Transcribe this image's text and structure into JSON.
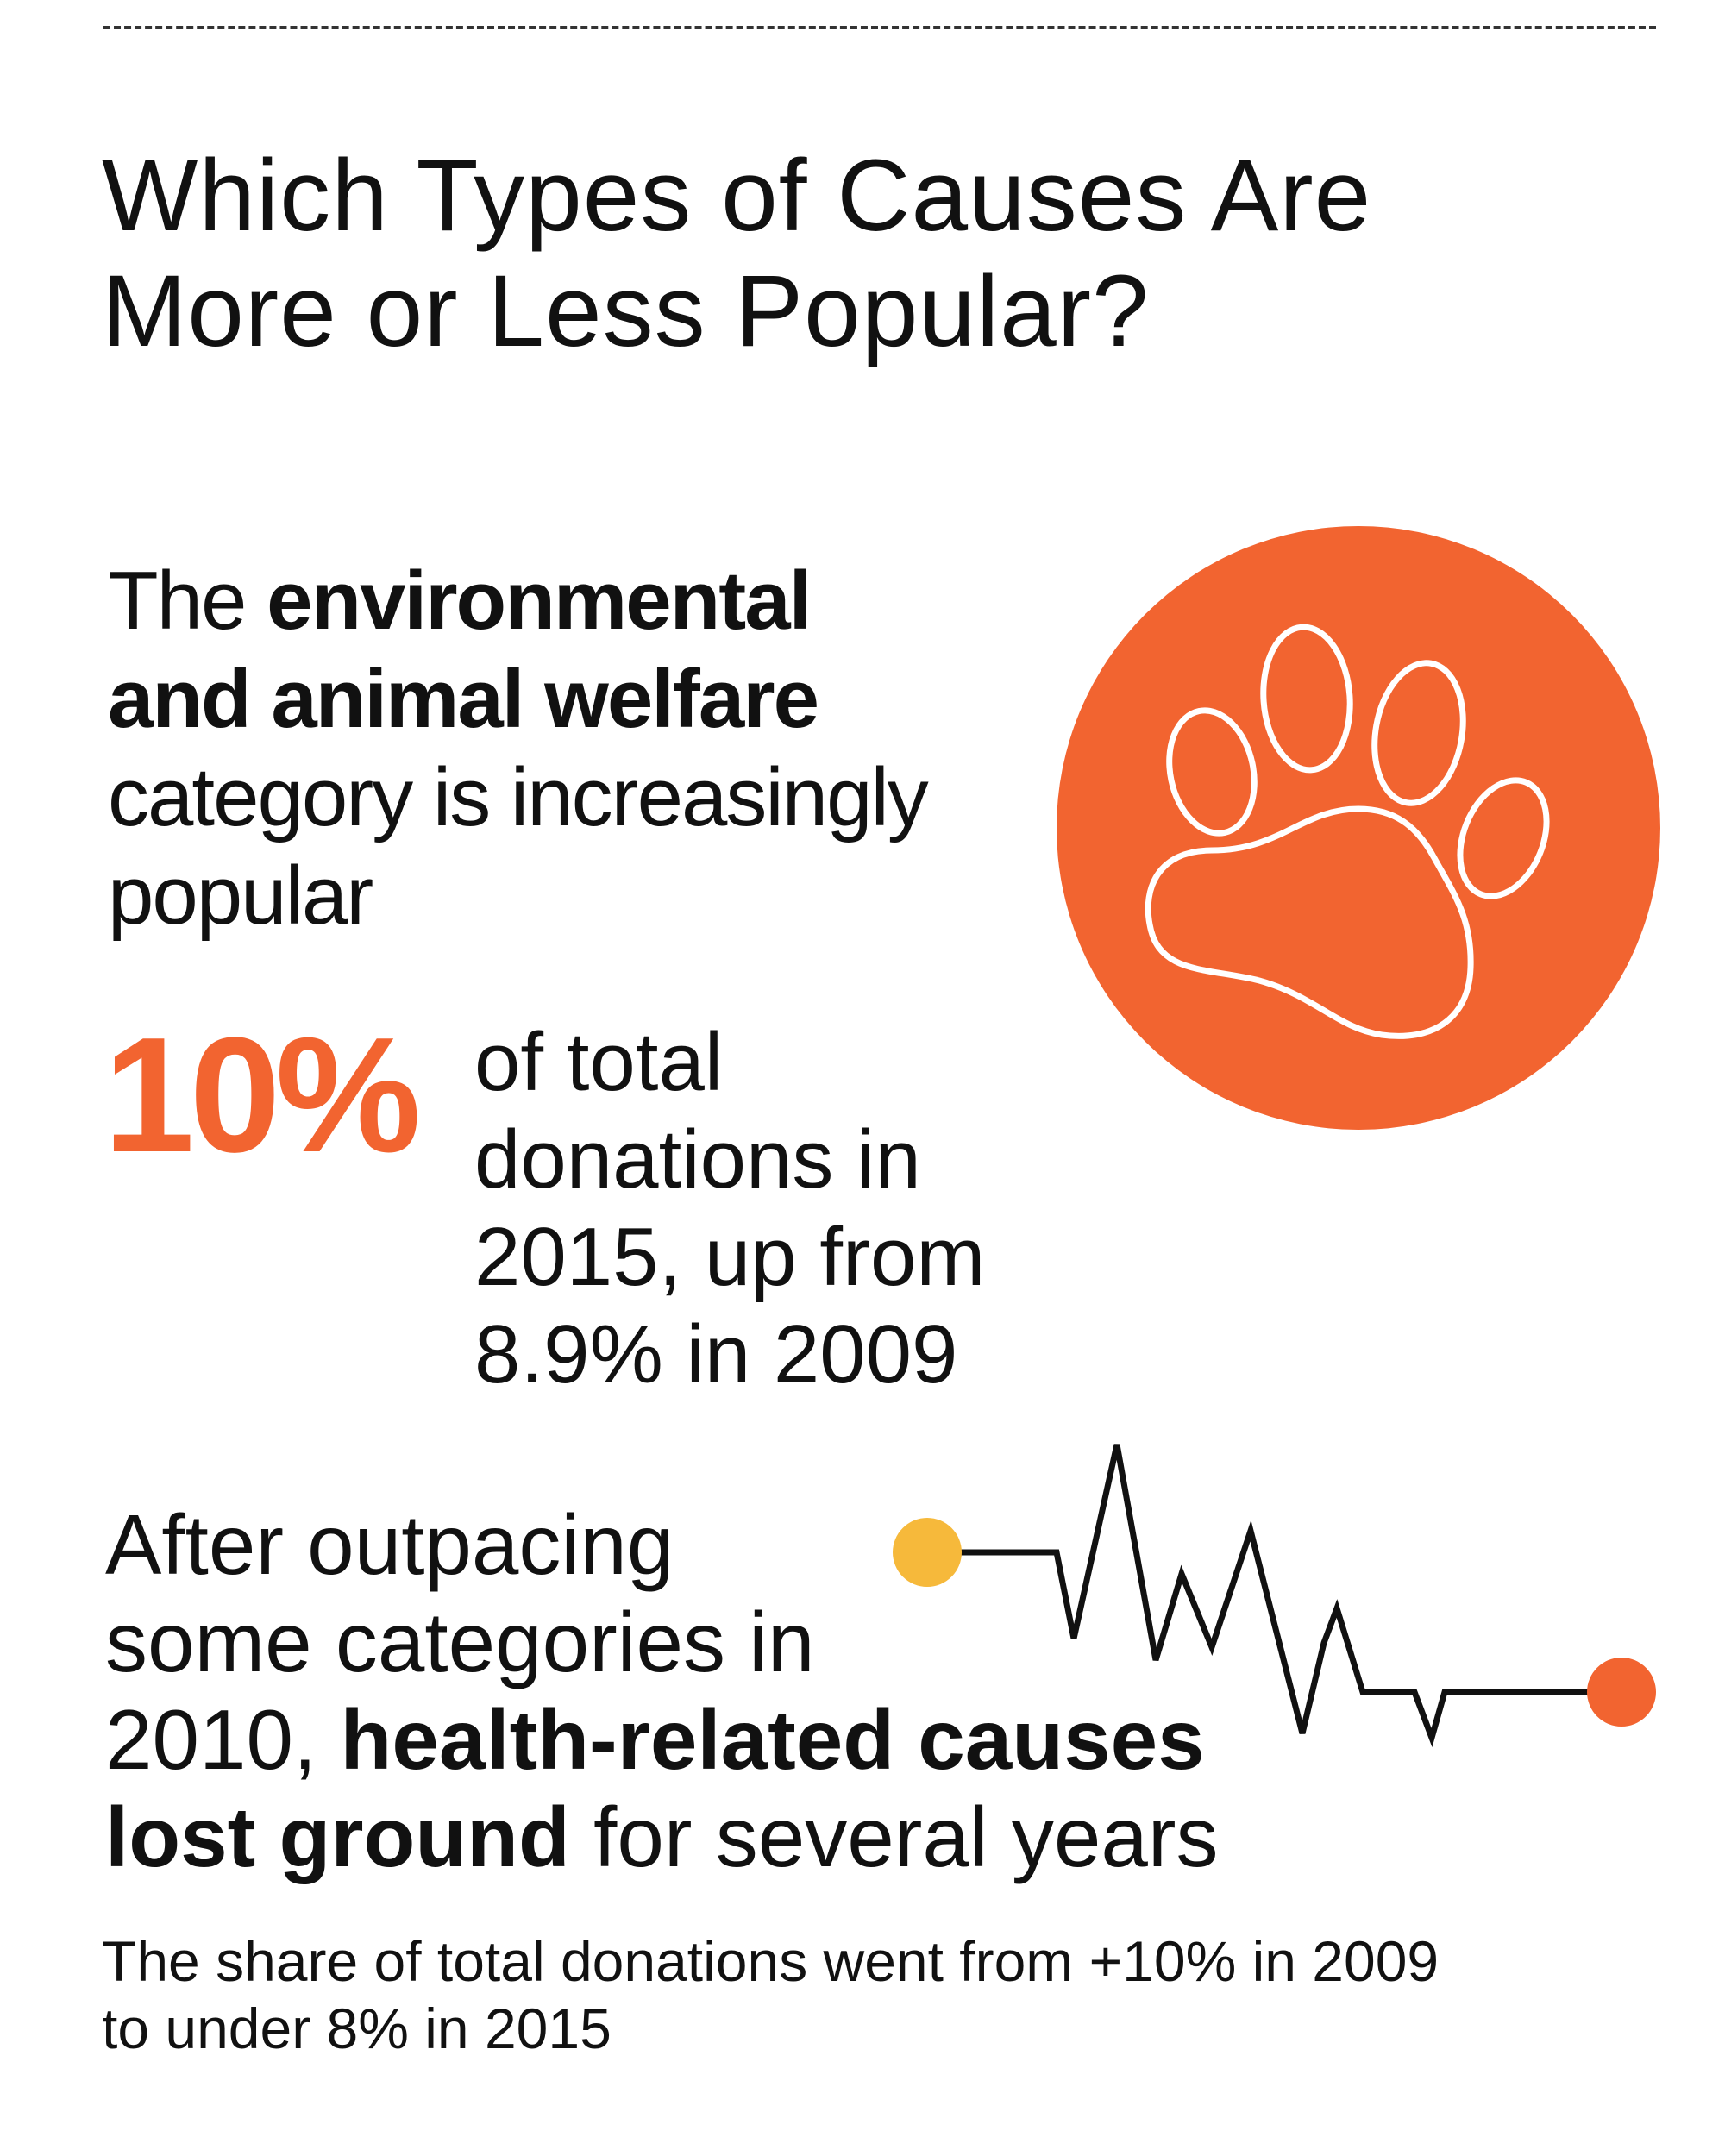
{
  "title": {
    "line1": "Which Types of Causes Are",
    "line2": "More or Less Popular?"
  },
  "environment": {
    "pre": "The ",
    "bold1": "environmental",
    "bold2": "and animal welfare",
    "line3": "category is increasingly",
    "line4": "popular",
    "icon": "paw-icon",
    "circle_color": "#f26430"
  },
  "stat": {
    "value": "10%",
    "desc_line1": "of total",
    "desc_line2": "donations in",
    "desc_line3": "2015, up from",
    "desc_line4": "8.9% in 2009",
    "color": "#f26430"
  },
  "health": {
    "line1": "After outpacing",
    "line2": "some categories in",
    "line3_pre": "2010, ",
    "line3_bold": "health-related causes",
    "line4_bold": "lost ground",
    "line4_post": " for several years",
    "icon": "heartbeat-line-icon",
    "start_dot_color": "#f6b93b",
    "end_dot_color": "#f26430"
  },
  "footnote": {
    "line1": "The share of total donations went from +10% in 2009",
    "line2": "to under 8% in 2015"
  }
}
